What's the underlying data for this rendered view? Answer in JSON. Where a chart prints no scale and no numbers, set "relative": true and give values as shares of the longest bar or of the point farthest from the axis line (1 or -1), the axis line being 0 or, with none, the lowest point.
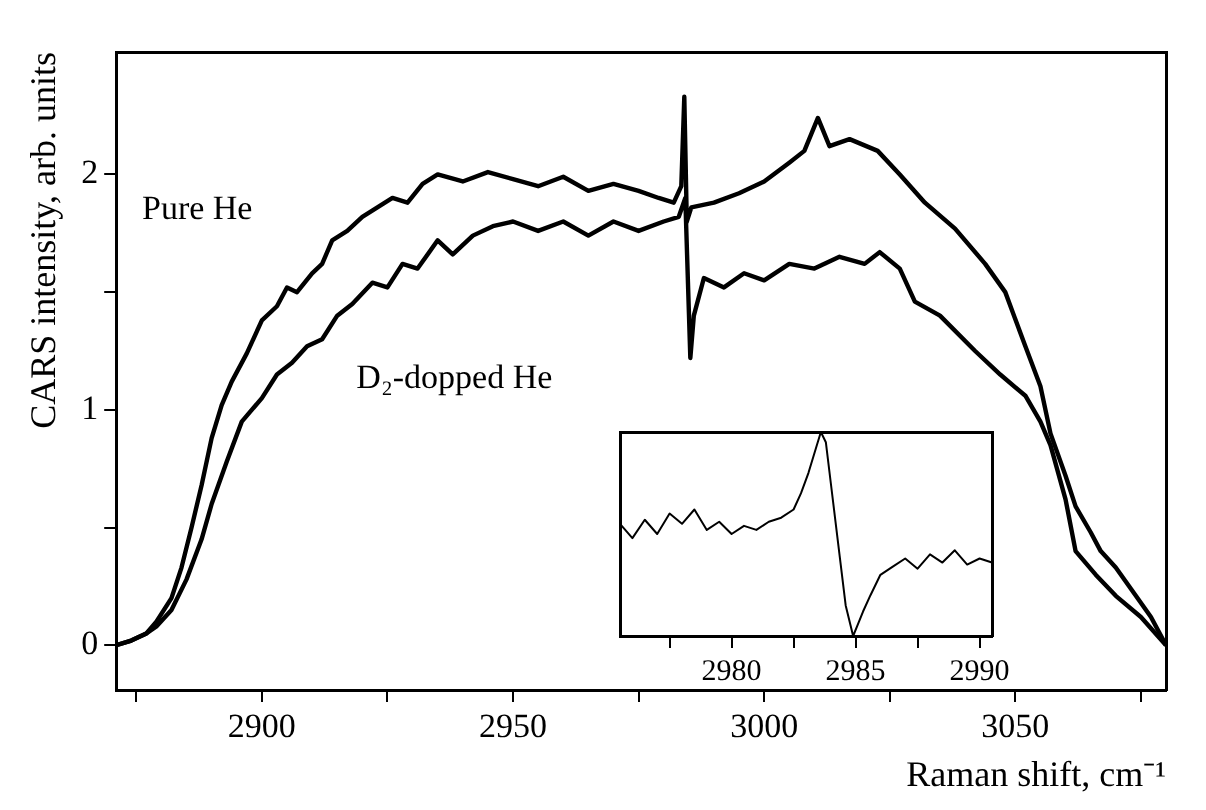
{
  "chart_data": [
    {
      "type": "line",
      "xlabel": "Raman shift, cm⁻¹",
      "ylabel": "CARS intensity, arb. units",
      "xlim": [
        2871,
        3080
      ],
      "xticks": [
        {
          "value": 2875,
          "label": null
        },
        2900,
        {
          "value": 2925,
          "label": null
        },
        2950,
        {
          "value": 2975,
          "label": null
        },
        3000,
        {
          "value": 3025,
          "label": null
        },
        3050,
        {
          "value": 3075,
          "label": null
        }
      ],
      "ylim": [
        -0.19,
        2.52
      ],
      "yticks": [
        0,
        {
          "value": 0.5,
          "label": null
        },
        1,
        {
          "value": 1.5,
          "label": null
        },
        2
      ],
      "grid": false,
      "legend": false,
      "marker": "none",
      "line_style": "solid",
      "series": [
        {
          "name": "Pure He",
          "color": "#000000",
          "x": [
            2871,
            2874,
            2877,
            2879,
            2882,
            2884,
            2886,
            2888,
            2890,
            2892,
            2894,
            2897,
            2900,
            2903,
            2905,
            2907,
            2910,
            2912,
            2914,
            2917,
            2920,
            2923,
            2926,
            2929,
            2932,
            2935,
            2940,
            2945,
            2950,
            2955,
            2960,
            2965,
            2970,
            2975,
            2979,
            2982,
            2983.5,
            2984.1,
            2984.6,
            2985.5,
            2990,
            2995,
            3000,
            3005,
            3008,
            3010.7,
            3013,
            3017,
            3022.6,
            3027,
            3032,
            3038,
            3044,
            3048,
            3052,
            3055,
            3057,
            3060,
            3062,
            3065,
            3067,
            3070,
            3074,
            3077,
            3080
          ],
          "values": [
            0.0,
            0.02,
            0.05,
            0.1,
            0.2,
            0.33,
            0.5,
            0.68,
            0.88,
            1.02,
            1.12,
            1.24,
            1.38,
            1.44,
            1.52,
            1.5,
            1.58,
            1.62,
            1.72,
            1.76,
            1.82,
            1.86,
            1.9,
            1.88,
            1.96,
            2.0,
            1.97,
            2.01,
            1.98,
            1.95,
            1.99,
            1.93,
            1.96,
            1.93,
            1.9,
            1.88,
            1.95,
            2.33,
            1.8,
            1.86,
            1.88,
            1.92,
            1.97,
            2.05,
            2.1,
            2.24,
            2.12,
            2.15,
            2.1,
            2.0,
            1.88,
            1.77,
            1.62,
            1.5,
            1.27,
            1.1,
            0.9,
            0.72,
            0.59,
            0.48,
            0.4,
            0.33,
            0.21,
            0.12,
            0.0
          ]
        },
        {
          "name": "D₂-dopped He",
          "color": "#000000",
          "x": [
            2871,
            2874,
            2877,
            2879,
            2882,
            2885,
            2888,
            2890,
            2893,
            2896,
            2900,
            2903,
            2906,
            2909,
            2912,
            2915,
            2918,
            2922,
            2925,
            2928,
            2931,
            2935,
            2938,
            2942,
            2946,
            2950,
            2955,
            2960,
            2965,
            2970,
            2975,
            2980,
            2983,
            2984.3,
            2985.3,
            2986,
            2988,
            2992,
            2996,
            3000,
            3005,
            3010,
            3015,
            3020,
            3023,
            3027,
            3030,
            3035,
            3042,
            3047,
            3052,
            3055,
            3057,
            3060,
            3062,
            3066,
            3070,
            3075,
            3080
          ],
          "values": [
            0.0,
            0.02,
            0.05,
            0.08,
            0.15,
            0.28,
            0.45,
            0.6,
            0.78,
            0.95,
            1.05,
            1.15,
            1.2,
            1.27,
            1.3,
            1.4,
            1.45,
            1.54,
            1.52,
            1.62,
            1.6,
            1.72,
            1.66,
            1.74,
            1.78,
            1.8,
            1.76,
            1.8,
            1.74,
            1.8,
            1.76,
            1.8,
            1.82,
            1.9,
            1.22,
            1.4,
            1.56,
            1.52,
            1.58,
            1.55,
            1.62,
            1.6,
            1.65,
            1.62,
            1.67,
            1.6,
            1.46,
            1.4,
            1.25,
            1.15,
            1.06,
            0.95,
            0.85,
            0.62,
            0.4,
            0.3,
            0.21,
            0.12,
            0.0
          ]
        }
      ]
    },
    {
      "type": "line",
      "relative": true,
      "tick_labels": "x",
      "grid": false,
      "legend": false,
      "marker": "none",
      "line_style": "solid",
      "xlim": [
        2975.5,
        2990.5
      ],
      "xticks": [
        {
          "value": 2977.5,
          "label": null
        },
        2980,
        {
          "value": 2982.5,
          "label": null
        },
        2985,
        {
          "value": 2987.5,
          "label": null
        },
        2990
      ],
      "series": [
        {
          "color": "#000000",
          "x": [
            2975.5,
            2976,
            2976.5,
            2977,
            2977.5,
            2978,
            2978.5,
            2979,
            2979.5,
            2980,
            2980.5,
            2981,
            2981.5,
            2982,
            2982.5,
            2982.8,
            2983.1,
            2983.4,
            2983.6,
            2983.8,
            2984,
            2984.2,
            2984.4,
            2984.6,
            2984.8,
            2984.9,
            2985.1,
            2985.3,
            2985.6,
            2986,
            2986.5,
            2987,
            2987.5,
            2988,
            2988.5,
            2989,
            2989.5,
            2990,
            2990.5
          ],
          "values": [
            0.55,
            0.48,
            0.57,
            0.5,
            0.6,
            0.55,
            0.62,
            0.52,
            0.56,
            0.5,
            0.54,
            0.52,
            0.56,
            0.58,
            0.62,
            0.7,
            0.8,
            0.92,
            1.0,
            0.95,
            0.75,
            0.55,
            0.35,
            0.15,
            0.05,
            0.0,
            0.06,
            0.12,
            0.2,
            0.3,
            0.34,
            0.38,
            0.33,
            0.4,
            0.36,
            0.42,
            0.35,
            0.38,
            0.36
          ]
        }
      ]
    }
  ]
}
